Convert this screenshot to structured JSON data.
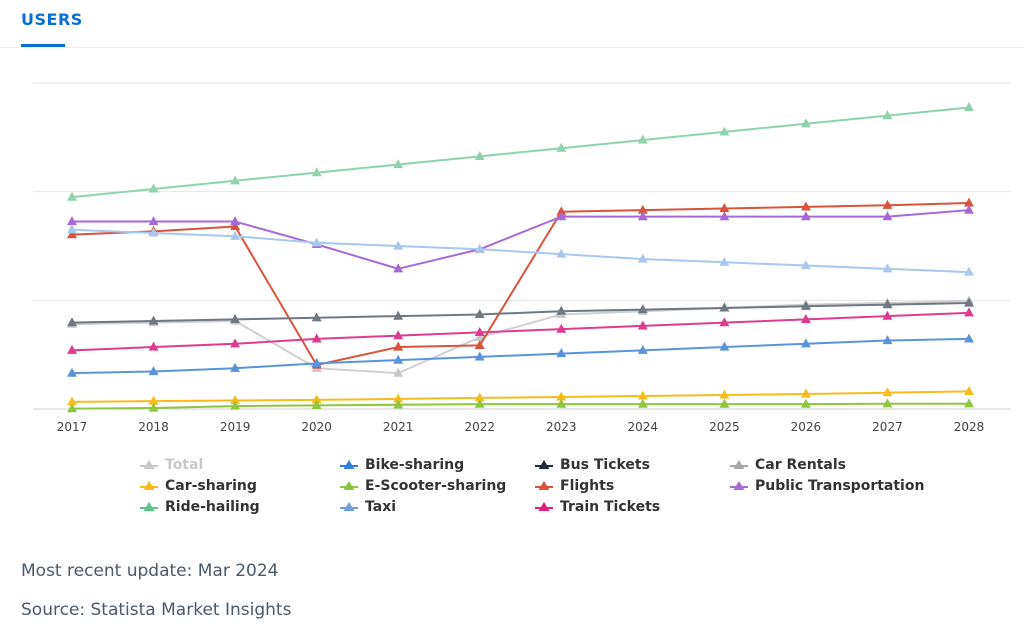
{
  "tabs": {
    "users_label": "USERS"
  },
  "footer": {
    "update": "Most recent update: Mar 2024",
    "source": "Source: Statista Market Insights"
  },
  "chart_data": {
    "type": "line",
    "x": [
      "2017",
      "2018",
      "2019",
      "2020",
      "2021",
      "2022",
      "2023",
      "2024",
      "2025",
      "2026",
      "2027",
      "2028"
    ],
    "ylim": [
      0,
      100
    ],
    "grid": true,
    "legend_position": "bottom",
    "series": [
      {
        "name": "Total",
        "color": "#c8c8c8",
        "hidden": true,
        "values": [
          26,
          26.5,
          27,
          12.5,
          11,
          22,
          29,
          30,
          31,
          32,
          32.5,
          33.2
        ]
      },
      {
        "name": "Bike-sharing",
        "color": "#2f7ee0",
        "hidden": false,
        "values": [
          null,
          null,
          null,
          null,
          null,
          null,
          null,
          null,
          null,
          null,
          null,
          null
        ]
      },
      {
        "name": "Bus Tickets",
        "color": "#1c2b3a",
        "hidden": false,
        "values": [
          null,
          null,
          null,
          null,
          null,
          null,
          null,
          null,
          null,
          null,
          null,
          null
        ]
      },
      {
        "name": "Car Rentals",
        "color": "#a9a9a9",
        "hidden": false,
        "values": [
          null,
          null,
          null,
          null,
          null,
          null,
          null,
          null,
          null,
          null,
          null,
          null
        ]
      },
      {
        "name": "Car-sharing",
        "color": "#f7bb1a",
        "hidden": false,
        "values": [
          2.2,
          2.4,
          2.6,
          2.8,
          3.1,
          3.4,
          3.7,
          4.0,
          4.3,
          4.6,
          5.0,
          5.4
        ]
      },
      {
        "name": "E-Scooter-sharing",
        "color": "#8dc63f",
        "hidden": false,
        "values": [
          0.1,
          0.3,
          0.9,
          1.1,
          1.3,
          1.5,
          1.5,
          1.5,
          1.5,
          1.5,
          1.6,
          1.6
        ]
      },
      {
        "name": "Flights",
        "color": "#d9533c",
        "hidden": false,
        "values": [
          53.5,
          54.5,
          56,
          13.5,
          19,
          19.5,
          60.5,
          61,
          61.5,
          62,
          62.5,
          63.2
        ]
      },
      {
        "name": "Public Transportation",
        "color": "#a66ad6",
        "hidden": false,
        "values": [
          57.5,
          57.5,
          57.5,
          50.5,
          43,
          49,
          59,
          59,
          59,
          59,
          59,
          61
        ]
      },
      {
        "name": "Ride-hailing",
        "color": "#8fd3ad",
        "hidden": false,
        "values": [
          65,
          67.5,
          70,
          72.5,
          75,
          77.5,
          80,
          82.5,
          85,
          87.5,
          90,
          92.5
        ]
      },
      {
        "name": "Taxi",
        "color": "#a9c8ee",
        "hidden": false,
        "values": [
          55,
          54,
          53,
          51,
          50,
          49,
          47.5,
          46,
          45,
          44,
          43,
          42
        ]
      },
      {
        "name": "Train Tickets",
        "color": "#dd3c8e",
        "hidden": false,
        "values": [
          18,
          19,
          20,
          21.5,
          22.5,
          23.5,
          24.5,
          25.5,
          26.5,
          27.5,
          28.5,
          29.5
        ]
      },
      {
        "name": "Bike-sharing",
        "color": "#5b93db",
        "hidden": false,
        "legend": false,
        "values": [
          11,
          11.5,
          12.5,
          14,
          15,
          16,
          17,
          18,
          19,
          20,
          21,
          21.5
        ]
      },
      {
        "name": "Bus Tickets",
        "color": "#6f7780",
        "hidden": false,
        "legend": false,
        "values": [
          26.5,
          27,
          27.5,
          28,
          28.5,
          29,
          30,
          30.5,
          31,
          31.5,
          32,
          32.5
        ]
      }
    ]
  },
  "legend_items": [
    {
      "name": "Total",
      "color": "#c8c8c8",
      "hidden": true
    },
    {
      "name": "Bike-sharing",
      "color": "#2f7ee0",
      "hidden": false
    },
    {
      "name": "Bus Tickets",
      "color": "#1c2b3a",
      "hidden": false
    },
    {
      "name": "Car Rentals",
      "color": "#a9a9a9",
      "hidden": false
    },
    {
      "name": "Car-sharing",
      "color": "#f7bb1a",
      "hidden": false
    },
    {
      "name": "E-Scooter-sharing",
      "color": "#8dc63f",
      "hidden": false
    },
    {
      "name": "Flights",
      "color": "#d9533c",
      "hidden": false
    },
    {
      "name": "Public Transportation",
      "color": "#a66ad6",
      "hidden": false
    },
    {
      "name": "Ride-hailing",
      "color": "#5fc38c",
      "hidden": false
    },
    {
      "name": "Taxi",
      "color": "#6f9fe0",
      "hidden": false
    },
    {
      "name": "Train Tickets",
      "color": "#dd1f7a",
      "hidden": false
    }
  ]
}
